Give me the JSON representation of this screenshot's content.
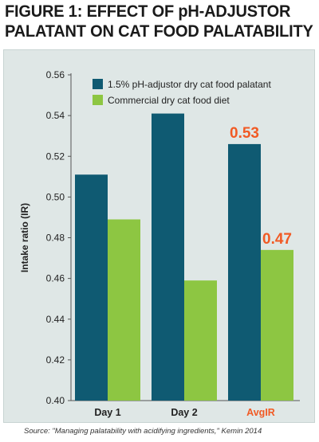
{
  "title_line1": "FIGURE 1: EFFECT OF pH-ADJUSTOR",
  "title_line2": "PALATANT ON CAT FOOD PALATABILITY",
  "source": "Source: \"Managing palatability with acidifying ingredients,\" Kemin 2014",
  "colors": {
    "series1": "#0f5a72",
    "series2": "#8dc642",
    "highlight": "#f15a24",
    "panel": "#dfe7e6"
  },
  "chart_data": {
    "type": "bar",
    "title": "FIGURE 1: EFFECT OF pH-ADJUSTOR PALATANT ON CAT FOOD PALATABILITY",
    "xlabel": "",
    "ylabel": "Intake ratio (IR)",
    "ylim": [
      0.4,
      0.56
    ],
    "yticks": [
      "0.40",
      "0.42",
      "0.44",
      "0.46",
      "0.48",
      "0.50",
      "0.52",
      "0.54",
      "0.56"
    ],
    "categories": [
      "Day 1",
      "Day 2",
      "AvgIR"
    ],
    "highlight_category": "AvgIR",
    "series": [
      {
        "name": "1.5% pH-adjustor dry cat food palatant",
        "values": [
          0.511,
          0.541,
          0.526
        ]
      },
      {
        "name": "Commercial dry cat food diet",
        "values": [
          0.489,
          0.459,
          0.474
        ]
      }
    ],
    "annotations": [
      {
        "text": "0.53",
        "category": "AvgIR",
        "series": 0
      },
      {
        "text": "0.47",
        "category": "AvgIR",
        "series": 1
      }
    ],
    "legend_position": "top",
    "grid": false
  }
}
